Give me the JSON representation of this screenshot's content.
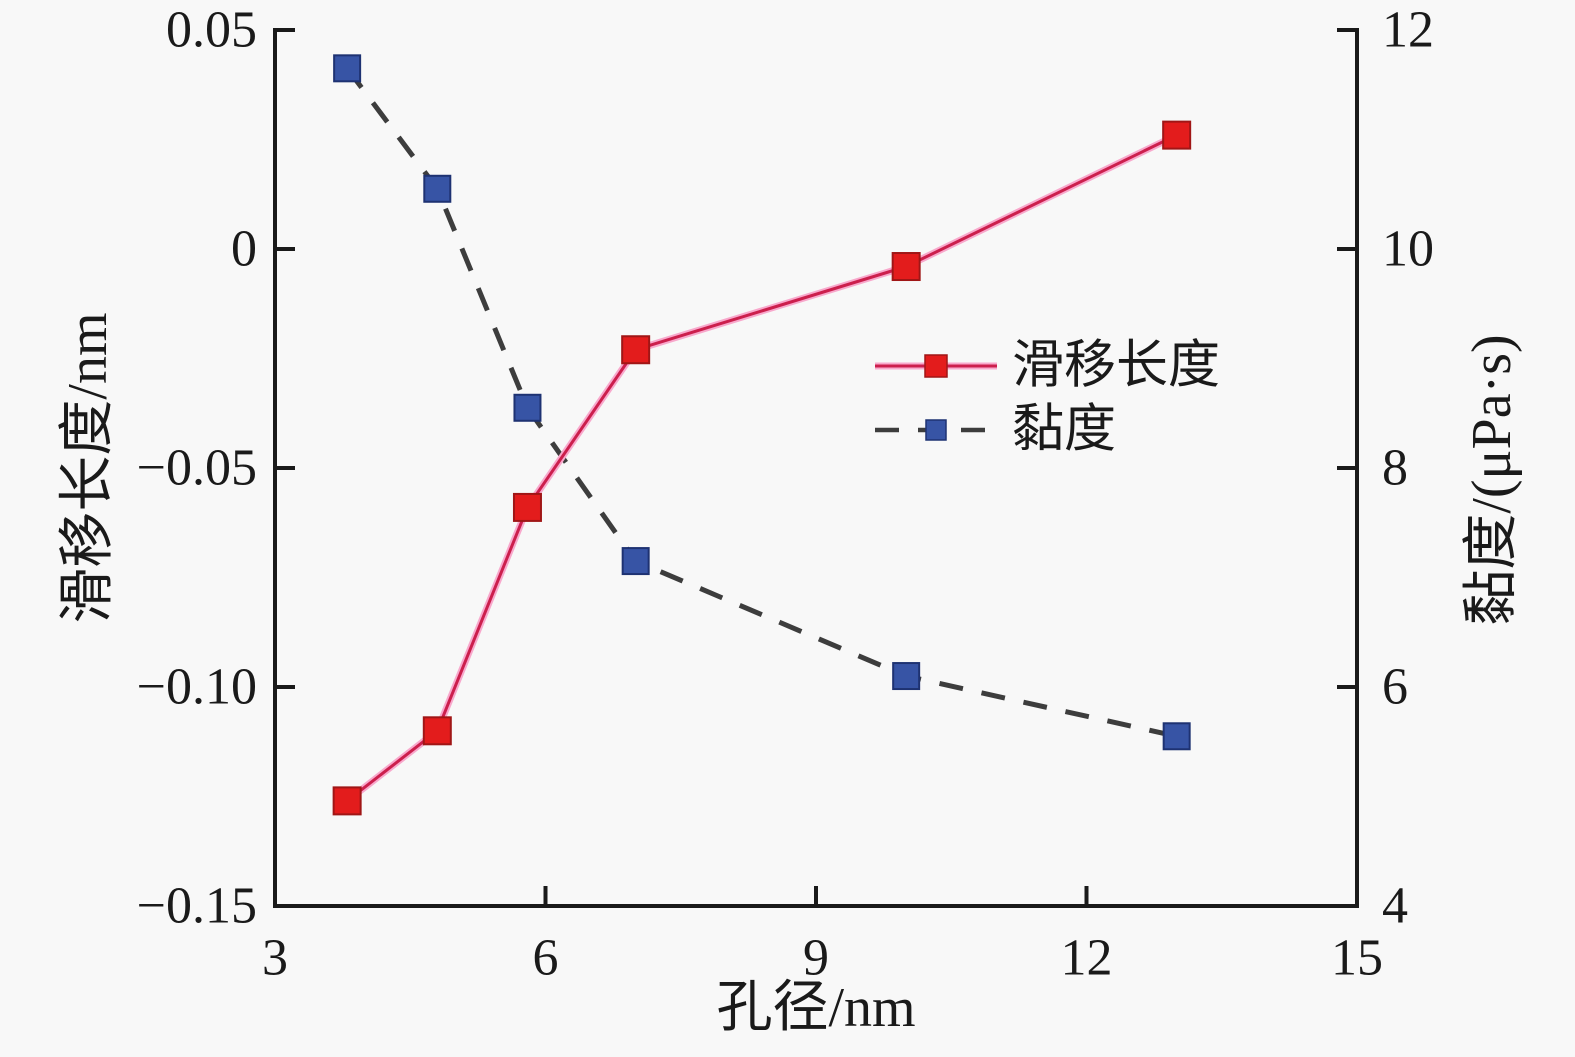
{
  "chart_data": {
    "type": "line",
    "title": "",
    "x_axis": {
      "label": "孔径/nm",
      "min": 3,
      "max": 15,
      "ticks": [
        3,
        6,
        9,
        12,
        15
      ],
      "tick_labels": [
        "3",
        "6",
        "9",
        "12",
        "15"
      ]
    },
    "y_axis_left": {
      "label": "滑移长度/nm",
      "min": -0.15,
      "max": 0.05,
      "ticks": [
        0.05,
        0,
        -0.05,
        -0.1,
        -0.15
      ],
      "tick_labels": [
        "0.05",
        "0",
        "−0.05",
        "−0.10",
        "−0.15"
      ]
    },
    "y_axis_right": {
      "label": "黏度/(μPa·s)",
      "min": 4,
      "max": 12,
      "ticks": [
        12,
        10,
        8,
        6,
        4
      ],
      "tick_labels": [
        "12",
        "10",
        "8",
        "6",
        "4"
      ]
    },
    "grid": "off",
    "legend_position": "center-right-inside",
    "series": [
      {
        "name": "滑移长度",
        "axis": "left",
        "line_style": "solid",
        "marker": "square",
        "x": [
          3.8,
          4.8,
          5.8,
          7,
          10,
          13
        ],
        "y": [
          -0.126,
          -0.11,
          -0.059,
          -0.023,
          -0.004,
          0.026
        ]
      },
      {
        "name": "黏度",
        "axis": "right",
        "line_style": "dashed",
        "marker": "square",
        "x": [
          3.8,
          4.8,
          5.8,
          7,
          10,
          13
        ],
        "y": [
          11.65,
          10.55,
          8.55,
          7.15,
          6.1,
          5.55
        ]
      }
    ]
  },
  "colors": {
    "background": "#f8f8f8",
    "axis": "#1a1a1a",
    "text": "#1a1a1a",
    "slip_line_core": "#cc1f4d",
    "slip_line_glow": "#f8a8cc",
    "slip_marker": "#e31c1c",
    "slip_marker_edge": "#a01616",
    "viscosity_line": "#3d3d3d",
    "viscosity_marker": "#3754a5",
    "viscosity_marker_edge": "#1e3272"
  }
}
